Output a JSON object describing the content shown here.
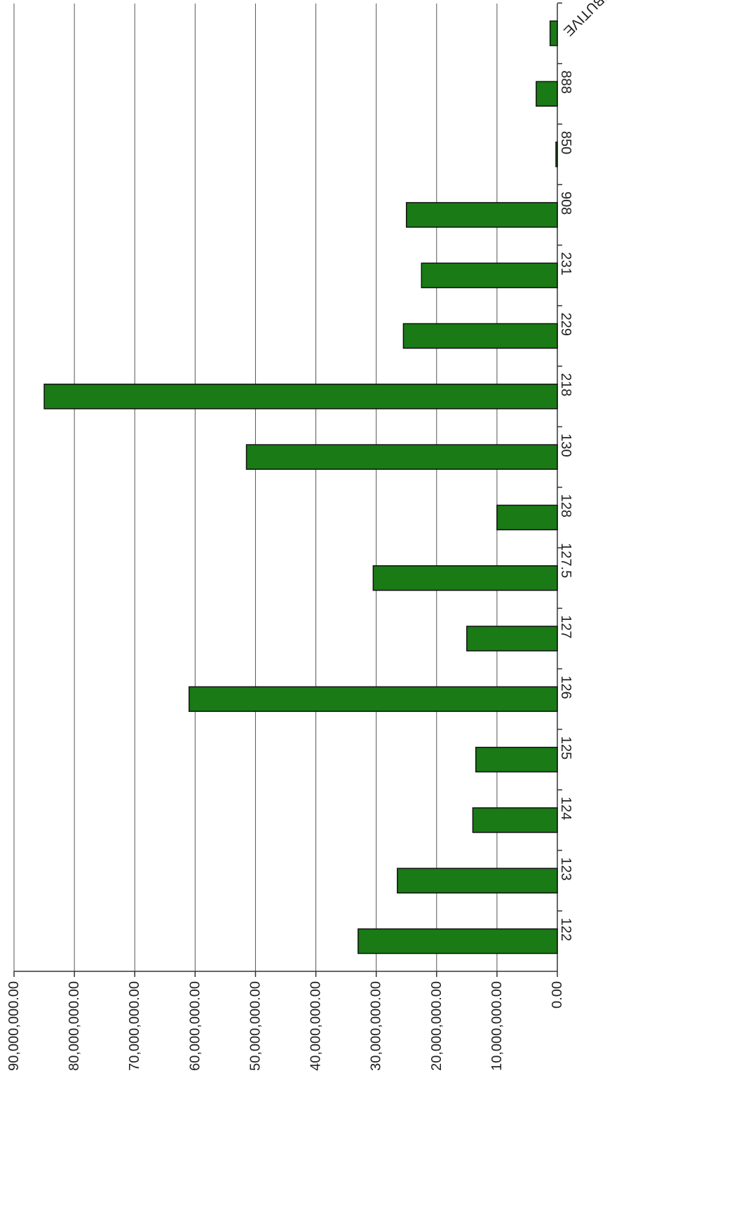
{
  "chart_data": {
    "type": "bar",
    "orientation": "horizontal",
    "categories": [
      "122",
      "123",
      "124",
      "125",
      "126",
      "127",
      "127.5",
      "128",
      "130",
      "218",
      "229",
      "231",
      "908",
      "850",
      "888",
      "DISTRIBUTIVE"
    ],
    "values": [
      33000000,
      26500000,
      14000000,
      13500000,
      61000000,
      15000000,
      30500000,
      10000000,
      51500000,
      85000000,
      25500000,
      22500000,
      25000000,
      150000,
      3500000,
      1200000
    ],
    "xlim": [
      0,
      90000000
    ],
    "tick_labels": [
      "0.00",
      "10,000,000.00",
      "20,000,000.00",
      "30,000,000.00",
      "40,000,000.00",
      "50,000,000.00",
      "60,000,000.00",
      "70,000,000.00",
      "80,000,000.00",
      "90,000,000.00"
    ],
    "grid": true,
    "bar_color": "#1a7a16",
    "bar_stroke": "#111111",
    "title": "",
    "xlabel": "",
    "ylabel": ""
  }
}
